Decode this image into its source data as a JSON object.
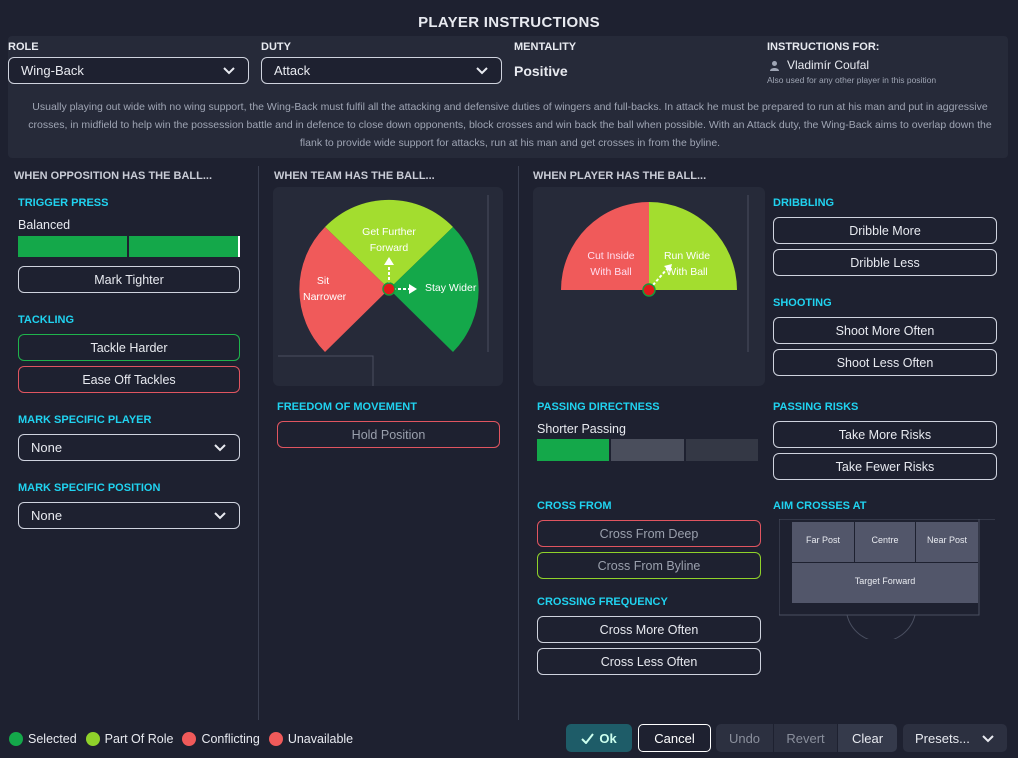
{
  "title": "PLAYER INSTRUCTIONS",
  "role": {
    "label": "ROLE",
    "value": "Wing-Back"
  },
  "duty": {
    "label": "DUTY",
    "value": "Attack"
  },
  "mentality": {
    "label": "MENTALITY",
    "value": "Positive"
  },
  "instructions_for": {
    "label": "INSTRUCTIONS FOR:",
    "player": "Vladimír Coufal",
    "note": "Also used for any other player in this position"
  },
  "description": "Usually playing out wide with no wing support, the Wing-Back must fulfil all the attacking and defensive duties of wingers and full-backs. In attack he must be prepared to run at his man and put in aggressive crosses, in midfield to help win the possession battle and in defence to close down opponents, block crosses and win back the ball when possible. With an Attack duty, the Wing-Back aims to overlap down the flank to provide wide support for attacks, run at his man and get crosses in from the byline.",
  "opposition": {
    "header": "WHEN OPPOSITION HAS THE BALL...",
    "trigger_press": {
      "label": "TRIGGER PRESS",
      "value": "Balanced",
      "level": 0.5
    },
    "mark_tighter": "Mark Tighter",
    "tackling": {
      "label": "TACKLING",
      "harder": "Tackle Harder",
      "easeoff": "Ease Off Tackles"
    },
    "mark_player": {
      "label": "MARK SPECIFIC PLAYER",
      "value": "None"
    },
    "mark_position": {
      "label": "MARK SPECIFIC POSITION",
      "value": "None"
    }
  },
  "team": {
    "header": "WHEN TEAM HAS THE BALL...",
    "further_forward": "Get Further",
    "further_forward2": "Forward",
    "sit_narrower": "Sit",
    "sit_narrower2": "Narrower",
    "stay_wider": "Stay Wider",
    "freedom": {
      "label": "FREEDOM OF MOVEMENT",
      "hold": "Hold Position"
    }
  },
  "player": {
    "header": "WHEN PLAYER HAS THE BALL...",
    "cut_inside": "Cut Inside",
    "cut_inside2": "With Ball",
    "run_wide": "Run Wide",
    "run_wide2": "With Ball",
    "passing_directness": {
      "label": "PASSING DIRECTNESS",
      "value": "Shorter Passing",
      "level": 1
    },
    "cross_from": {
      "label": "CROSS FROM",
      "deep": "Cross From Deep",
      "byline": "Cross From Byline"
    },
    "crossing_frequency": {
      "label": "CROSSING FREQUENCY",
      "more": "Cross More Often",
      "less": "Cross Less Often"
    }
  },
  "right": {
    "dribbling": {
      "label": "DRIBBLING",
      "more": "Dribble More",
      "less": "Dribble Less"
    },
    "shooting": {
      "label": "SHOOTING",
      "more": "Shoot More Often",
      "less": "Shoot Less Often"
    },
    "passing_risks": {
      "label": "PASSING RISKS",
      "more": "Take More Risks",
      "fewer": "Take Fewer Risks"
    },
    "aim_crosses": {
      "label": "AIM CROSSES AT",
      "far": "Far Post",
      "centre": "Centre",
      "near": "Near Post",
      "target": "Target Forward"
    }
  },
  "legend": [
    {
      "label": "Selected",
      "color": "#14a84a"
    },
    {
      "label": "Part Of Role",
      "color": "#8fd12a"
    },
    {
      "label": "Conflicting",
      "color": "#f05a5a"
    },
    {
      "label": "Unavailable",
      "color": "#f05a5a"
    }
  ],
  "footer": {
    "ok": "Ok",
    "cancel": "Cancel",
    "undo": "Undo",
    "revert": "Revert",
    "clear": "Clear",
    "presets": "Presets..."
  },
  "colors": {
    "accent": "#20d3f0",
    "green": "#14a84a",
    "lime": "#8fd12a",
    "red": "#f05a5a",
    "teal": "#1e5c68"
  }
}
